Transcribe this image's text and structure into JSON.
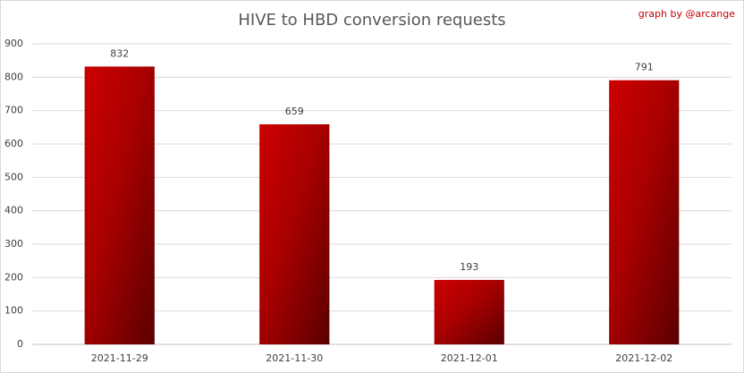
{
  "chart_data": {
    "type": "bar",
    "title": "HIVE to HBD conversion requests",
    "annotation": "graph by @arcange",
    "categories": [
      "2021-11-29",
      "2021-11-30",
      "2021-12-01",
      "2021-12-02"
    ],
    "values": [
      832,
      659,
      193,
      791
    ],
    "color": "#cc0000",
    "ylim": [
      0,
      900
    ],
    "yticks": [
      0,
      100,
      200,
      300,
      400,
      500,
      600,
      700,
      800,
      900
    ],
    "grid": true
  }
}
